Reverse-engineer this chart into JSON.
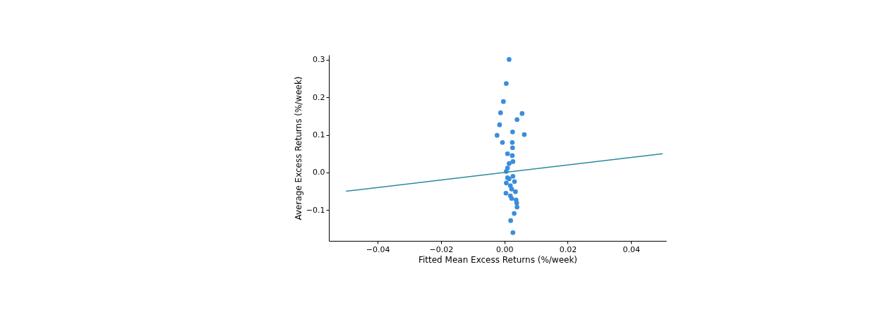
{
  "chart_data": {
    "type": "scatter",
    "xlabel": "Fitted Mean Excess Returns (%/week)",
    "ylabel": "Average Excess Returns (%/week)",
    "xlim": [
      -0.0554,
      0.0511
    ],
    "ylim": [
      -0.182,
      0.313
    ],
    "xticks": [
      {
        "value": -0.04,
        "label": "−0.04"
      },
      {
        "value": -0.02,
        "label": "−0.02"
      },
      {
        "value": 0,
        "label": "0.00"
      },
      {
        "value": 0.02,
        "label": "0.02"
      },
      {
        "value": 0.04,
        "label": "0.04"
      }
    ],
    "yticks": [
      {
        "value": -0.1,
        "label": "−0.1"
      },
      {
        "value": 0,
        "label": "0.0"
      },
      0.1,
      0.2,
      0.3
    ],
    "grid": false,
    "series": [
      {
        "marker": "circle",
        "color": "#3a8ddd",
        "x": [
          0.0015,
          0.0006,
          -0.0003,
          -0.0012,
          0.0056,
          0.004,
          -0.0015,
          0.0026,
          -0.0023,
          0.0063,
          -0.0006,
          0.0025,
          0.0026,
          0.001,
          0.0025,
          0.0027,
          0.0015,
          0.001,
          0.0006,
          0.0027,
          0.001,
          0.0015,
          0.0032,
          0.0006,
          0.0019,
          0.0023,
          0.0035,
          0.0005,
          0.0019,
          0.0023,
          0.0037,
          0.0039,
          0.004,
          0.0031,
          0.002,
          0.0027
        ],
        "values": [
          0.301,
          0.237,
          0.189,
          0.159,
          0.157,
          0.141,
          0.127,
          0.108,
          0.099,
          0.101,
          0.08,
          0.08,
          0.066,
          0.05,
          0.045,
          0.029,
          0.024,
          0.012,
          0.003,
          -0.01,
          -0.014,
          -0.017,
          -0.024,
          -0.028,
          -0.035,
          -0.044,
          -0.051,
          -0.055,
          -0.062,
          -0.069,
          -0.073,
          -0.081,
          -0.092,
          -0.109,
          -0.128,
          -0.16
        ]
      },
      {
        "type": "line",
        "color": "#2a8a9c",
        "x": [
          -0.05,
          0.05
        ],
        "values": [
          -0.05,
          0.05
        ]
      }
    ]
  }
}
